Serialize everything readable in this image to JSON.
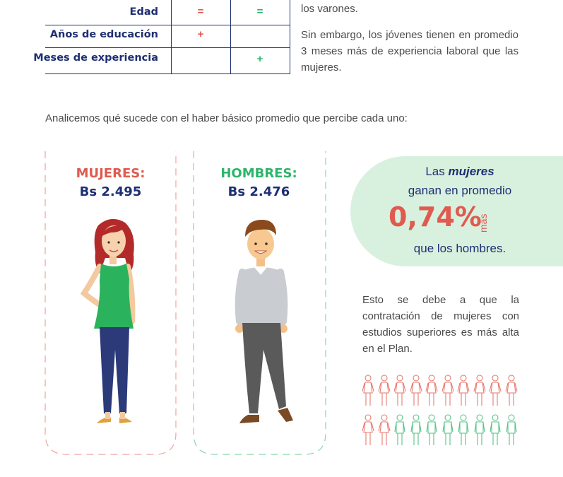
{
  "table": {
    "rows": [
      {
        "label": "Edad",
        "women": "=",
        "men": "="
      },
      {
        "label": "Años de educación",
        "women": "+",
        "men": ""
      },
      {
        "label": "Meses de experiencia",
        "women": "",
        "men": "+"
      }
    ]
  },
  "right_text": {
    "line_top": "los varones.",
    "paragraph": "Sin embargo, los jóvenes tienen en promedio 3 meses más de experiencia laboral que las mujeres."
  },
  "intro": "Analicemos qué sucede con el haber básico promedio que percibe cada uno:",
  "cards": {
    "women": {
      "label": "MUJERES:",
      "amount": "Bs 2.495"
    },
    "men": {
      "label": "HOMBRES:",
      "amount": "Bs 2.476"
    }
  },
  "bubble": {
    "prefix": "Las ",
    "subject": "mujeres",
    "line2": "ganan en promedio",
    "percent": "0,74%",
    "mas": "más",
    "line4": "que los hombres."
  },
  "explanation": "Esto se debe a que la contratación de mujeres con estudios superiores es más alta en el Plan.",
  "icon_grid": {
    "row1": [
      "female",
      "female",
      "female",
      "female",
      "female",
      "female",
      "female",
      "female",
      "female",
      "female"
    ],
    "row2": [
      "female",
      "female",
      "male",
      "male",
      "male",
      "male",
      "male",
      "male",
      "male",
      "male"
    ]
  },
  "colors": {
    "navy": "#1e2f73",
    "red": "#e05a4f",
    "green": "#2cb56a",
    "bubble_bg": "#d8f1df"
  }
}
